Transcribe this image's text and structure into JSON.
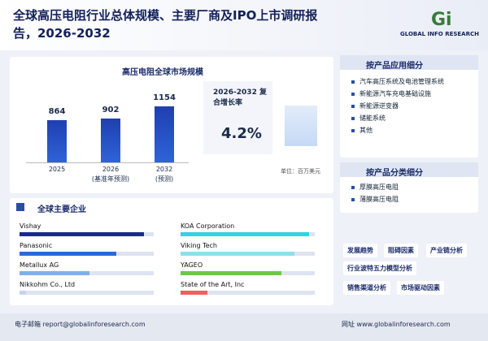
{
  "header": {
    "title": "全球高压电阻行业总体规模、主要厂商及IPO上市调研报告，2026-2032",
    "logo": "GLOBAL INFO RESEARCH"
  },
  "market": {
    "title": "高压电阻全球市场规模",
    "bars": [
      {
        "label": "2025",
        "value": 864
      },
      {
        "label": "2026",
        "note": "(基准年预测)",
        "value": 902
      },
      {
        "label": "2032",
        "note": "(预测)",
        "value": 1154
      }
    ],
    "cagr_label": "2026-2032 复合增长率",
    "cagr": "4.2%",
    "unit": "单位：百万美元"
  },
  "companies": {
    "title": "全球主要企业",
    "list": [
      "Vishay",
      "Panasonic",
      "Metallux AG",
      "Nikkohm Co., Ltd",
      "KOA Corporation",
      "Viking Tech",
      "YAGEO",
      "State of the Art, Inc"
    ]
  },
  "application": {
    "title": "按产品应用细分",
    "items": [
      "汽车高压系统及电池管理系统",
      "新能源汽车充电基础设施",
      "新能源逆变器",
      "储能系统",
      "其他"
    ]
  },
  "product_type": {
    "title": "按产品分类细分",
    "items": [
      "厚膜高压电阻",
      "薄膜高压电阻"
    ]
  },
  "tags": [
    "发展趋势",
    "阻碍因素",
    "产业链分析",
    "行业波特五力模型分析",
    "销售渠道分析",
    "市场驱动因素"
  ],
  "footer": {
    "email_label": "电子邮箱",
    "email": "report@globalinforesearch.com",
    "web_label": "网址",
    "web": "www.globalinforesearch.com"
  }
}
